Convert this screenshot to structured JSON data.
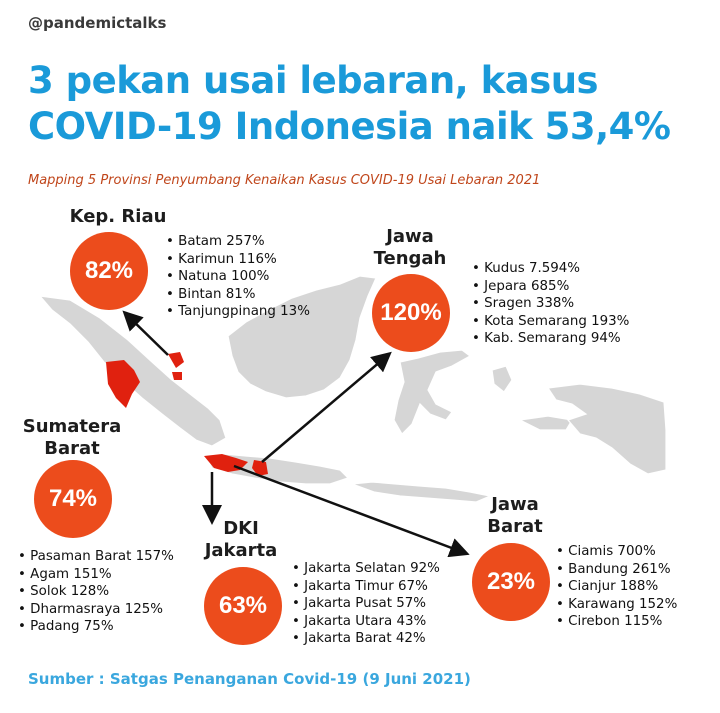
{
  "handle": "@pandemictalks",
  "title_line1": "3 pekan usai lebaran, kasus",
  "title_line2": "COVID-19 Indonesia naik 53,4%",
  "subtitle": "Mapping 5 Provinsi Penyumbang Kenaikan Kasus COVID-19 Usai Lebaran 2021",
  "source": "Sumber : Satgas Penanganan Covid-19 (9 Juni 2021)",
  "colors": {
    "title": "#1a9ad9",
    "accent": "#ec4c1c",
    "subtitle": "#c0461b",
    "map": "#d6d6d6"
  },
  "provinces": [
    {
      "name_line1": "Kep. Riau",
      "name_line2": "",
      "percent": "82%",
      "items": [
        "Batam 257%",
        "Karimun 116%",
        "Natuna 100%",
        "Bintan 81%",
        "Tanjungpinang 13%"
      ]
    },
    {
      "name_line1": "Jawa",
      "name_line2": "Tengah",
      "percent": "120%",
      "items": [
        "Kudus 7.594%",
        "Jepara 685%",
        "Sragen 338%",
        "Kota Semarang 193%",
        "Kab. Semarang 94%"
      ]
    },
    {
      "name_line1": "Sumatera",
      "name_line2": "Barat",
      "percent": "74%",
      "items": [
        "Pasaman Barat 157%",
        "Agam  151%",
        "Solok 128%",
        "Dharmasraya 125%",
        "Padang 75%"
      ]
    },
    {
      "name_line1": "DKI",
      "name_line2": "Jakarta",
      "percent": "63%",
      "items": [
        "Jakarta Selatan 92%",
        "Jakarta Timur 67%",
        "Jakarta Pusat 57%",
        "Jakarta Utara 43%",
        "Jakarta Barat 42%"
      ]
    },
    {
      "name_line1": "Jawa",
      "name_line2": "Barat",
      "percent": "23%",
      "items": [
        "Ciamis 700%",
        "Bandung 261%",
        "Cianjur 188%",
        "Karawang 152%",
        "Cirebon 115%"
      ]
    }
  ]
}
